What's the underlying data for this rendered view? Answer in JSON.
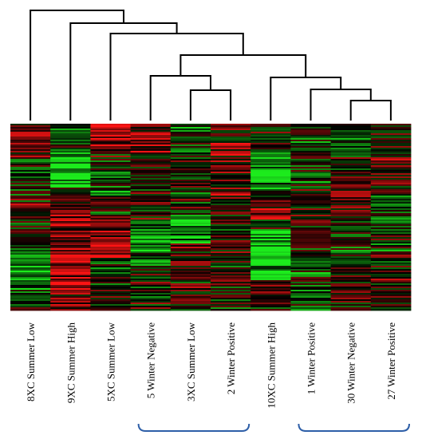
{
  "figure": {
    "type": "heatmap-with-dendrogram",
    "colors": {
      "high": "#ff1e1e",
      "low": "#1ee61e",
      "mid": "#000000",
      "dendrogram": "#000000",
      "bracket": "#2e5fa8"
    },
    "columns": [
      {
        "label": "8XC Summer Low"
      },
      {
        "label": "9XC Summer High"
      },
      {
        "label": "5XC Summer Low"
      },
      {
        "label": "5 Winter Negative"
      },
      {
        "label": "3XC Summer Low"
      },
      {
        "label": "2 Winter Positive"
      },
      {
        "label": "10XC Summer High"
      },
      {
        "label": "1 Winter Positive"
      },
      {
        "label": "30 Winter Negative"
      },
      {
        "label": "27 Winter Positive"
      }
    ],
    "dendrogram": {
      "merges": [
        {
          "left": 4,
          "right": 5
        },
        {
          "left": 3,
          "right": 10
        },
        {
          "left": 8,
          "right": 9
        },
        {
          "left": 7,
          "right": 12
        },
        {
          "left": 6,
          "right": 13
        },
        {
          "left": 11,
          "right": 14
        },
        {
          "left": 2,
          "right": 15
        },
        {
          "left": 1,
          "right": 16
        },
        {
          "left": 0,
          "right": 17
        }
      ]
    },
    "brackets": [
      {
        "from": 3,
        "to": 5
      },
      {
        "from": 7,
        "to": 9
      }
    ]
  }
}
